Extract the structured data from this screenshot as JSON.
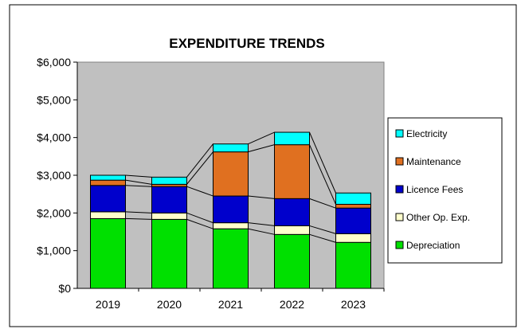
{
  "chart_data": {
    "type": "bar",
    "stacked": true,
    "title": "EXPENDITURE TRENDS",
    "xlabel": "",
    "ylabel": "",
    "categories": [
      "2019",
      "2020",
      "2021",
      "2022",
      "2023"
    ],
    "ylim": [
      0,
      6000
    ],
    "yticks": [
      0,
      1000,
      2000,
      3000,
      4000,
      5000,
      6000
    ],
    "ytick_labels": [
      "$0",
      "$1,000",
      "$2,000",
      "$3,000",
      "$4,000",
      "$5,000",
      "$6,000"
    ],
    "grid": false,
    "series_lines": true,
    "legend_position": "right",
    "series": [
      {
        "name": "Depreciation",
        "color": "#00e000",
        "values": [
          1850,
          1830,
          1580,
          1430,
          1220
        ]
      },
      {
        "name": "Other Op. Exp.",
        "color": "#ffffcc",
        "values": [
          180,
          170,
          160,
          230,
          230
        ]
      },
      {
        "name": "Licence Fees",
        "color": "#0000cc",
        "values": [
          700,
          700,
          710,
          720,
          680
        ]
      },
      {
        "name": "Maintenance",
        "color": "#e07020",
        "values": [
          140,
          60,
          1170,
          1430,
          100
        ]
      },
      {
        "name": "Electricity",
        "color": "#00ffff",
        "values": [
          130,
          190,
          210,
          330,
          300
        ]
      }
    ],
    "legend_order": [
      "Electricity",
      "Maintenance",
      "Licence Fees",
      "Other Op. Exp.",
      "Depreciation"
    ],
    "plot_background": "#c0c0c0"
  }
}
